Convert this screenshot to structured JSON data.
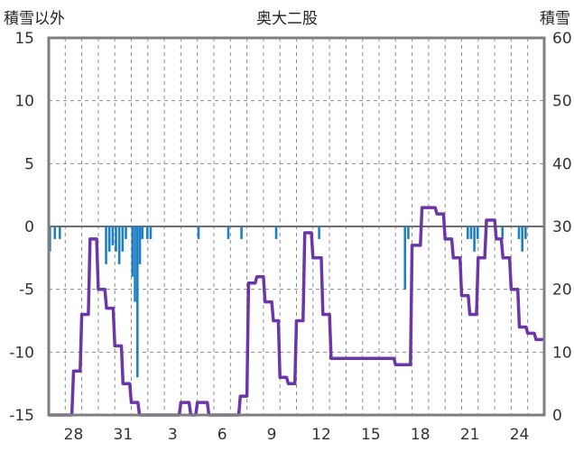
{
  "chart_data": {
    "type": "bar+line",
    "title": "奥大二股",
    "left_axis_label": "積雪以外",
    "right_axis_label": "積雪",
    "left_axis": {
      "range": [
        -15,
        15
      ],
      "ticks": [
        "15",
        "10",
        "5",
        "0",
        "-5",
        "-10",
        "-15"
      ]
    },
    "right_axis": {
      "range": [
        0,
        60
      ],
      "ticks": [
        "60",
        "50",
        "40",
        "30",
        "20",
        "10",
        "0"
      ]
    },
    "x_axis": {
      "range_days": [
        0,
        30
      ],
      "tick_labels": [
        "28",
        "31",
        "3",
        "6",
        "9",
        "12",
        "15",
        "18",
        "21",
        "24"
      ],
      "tick_day_positions": [
        1.5,
        4.5,
        7.5,
        10.5,
        13.5,
        16.5,
        19.5,
        22.5,
        25.5,
        28.5
      ],
      "grid_day_lines": [
        1,
        2,
        3,
        4,
        5,
        6,
        7,
        8,
        9,
        10,
        11,
        12,
        13,
        14,
        15,
        16,
        17,
        18,
        19,
        20,
        21,
        22,
        23,
        24,
        25,
        26,
        27,
        28,
        29,
        30
      ]
    },
    "grid": true,
    "series": [
      {
        "kind": "bar",
        "axis": "left",
        "color": "#1f7fc4",
        "points": [
          [
            0.0,
            -2.0
          ],
          [
            0.3,
            -1.0
          ],
          [
            0.6,
            -1.0
          ],
          [
            3.4,
            -3.0
          ],
          [
            3.6,
            -2.0
          ],
          [
            3.8,
            -1.5
          ],
          [
            4.0,
            -2.0
          ],
          [
            4.2,
            -3.0
          ],
          [
            4.4,
            -2.0
          ],
          [
            4.6,
            -1.0
          ],
          [
            5.0,
            -4.0
          ],
          [
            5.15,
            -6.0
          ],
          [
            5.3,
            -12.0
          ],
          [
            5.45,
            -3.0
          ],
          [
            5.6,
            -1.0
          ],
          [
            5.9,
            -1.0
          ],
          [
            6.1,
            -1.0
          ],
          [
            9.0,
            -1.0
          ],
          [
            10.8,
            -1.0
          ],
          [
            11.6,
            -1.0
          ],
          [
            13.7,
            -1.0
          ],
          [
            16.3,
            -1.0
          ],
          [
            21.5,
            -5.0
          ],
          [
            21.7,
            -1.0
          ],
          [
            25.3,
            -1.0
          ],
          [
            25.5,
            -1.0
          ],
          [
            25.7,
            -2.0
          ],
          [
            25.9,
            -1.0
          ],
          [
            27.4,
            -1.0
          ],
          [
            28.4,
            -1.0
          ],
          [
            28.6,
            -2.0
          ],
          [
            28.8,
            -1.0
          ]
        ]
      },
      {
        "kind": "line",
        "axis": "right",
        "color": "#6a36a8",
        "points": [
          [
            0,
            0
          ],
          [
            1.4,
            0
          ],
          [
            1.5,
            7
          ],
          [
            1.9,
            7
          ],
          [
            2.0,
            16
          ],
          [
            2.4,
            16
          ],
          [
            2.5,
            28
          ],
          [
            2.9,
            28
          ],
          [
            3.0,
            20
          ],
          [
            3.4,
            20
          ],
          [
            3.5,
            17
          ],
          [
            3.9,
            17
          ],
          [
            4.0,
            11
          ],
          [
            4.4,
            11
          ],
          [
            4.5,
            5
          ],
          [
            4.9,
            5
          ],
          [
            5.0,
            2
          ],
          [
            5.4,
            2
          ],
          [
            5.5,
            0
          ],
          [
            7.9,
            0
          ],
          [
            8.0,
            2
          ],
          [
            8.5,
            2
          ],
          [
            8.6,
            0
          ],
          [
            8.9,
            0
          ],
          [
            9.0,
            2
          ],
          [
            9.6,
            2
          ],
          [
            9.7,
            0
          ],
          [
            11.5,
            0
          ],
          [
            11.6,
            3
          ],
          [
            12.0,
            3
          ],
          [
            12.1,
            21
          ],
          [
            12.5,
            21
          ],
          [
            12.6,
            22
          ],
          [
            13.0,
            22
          ],
          [
            13.1,
            18
          ],
          [
            13.5,
            18
          ],
          [
            13.6,
            15
          ],
          [
            13.9,
            15
          ],
          [
            14.0,
            6
          ],
          [
            14.4,
            6
          ],
          [
            14.5,
            5
          ],
          [
            14.9,
            5
          ],
          [
            15.0,
            15
          ],
          [
            15.4,
            15
          ],
          [
            15.5,
            29
          ],
          [
            15.9,
            29
          ],
          [
            16.0,
            25
          ],
          [
            16.5,
            25
          ],
          [
            16.6,
            16
          ],
          [
            17.0,
            16
          ],
          [
            17.1,
            9
          ],
          [
            20.9,
            9
          ],
          [
            21.0,
            8
          ],
          [
            21.9,
            8
          ],
          [
            22.0,
            27
          ],
          [
            22.5,
            27
          ],
          [
            22.6,
            33
          ],
          [
            23.4,
            33
          ],
          [
            23.5,
            32
          ],
          [
            23.9,
            32
          ],
          [
            24.0,
            28
          ],
          [
            24.4,
            28
          ],
          [
            24.5,
            25
          ],
          [
            24.9,
            25
          ],
          [
            25.0,
            19
          ],
          [
            25.4,
            19
          ],
          [
            25.5,
            16
          ],
          [
            25.9,
            16
          ],
          [
            26.0,
            25
          ],
          [
            26.4,
            25
          ],
          [
            26.5,
            31
          ],
          [
            27.0,
            31
          ],
          [
            27.1,
            28
          ],
          [
            27.4,
            28
          ],
          [
            27.5,
            25
          ],
          [
            27.9,
            25
          ],
          [
            28.0,
            20
          ],
          [
            28.4,
            20
          ],
          [
            28.5,
            14
          ],
          [
            28.9,
            14
          ],
          [
            29.0,
            13
          ],
          [
            29.4,
            13
          ],
          [
            29.5,
            12
          ],
          [
            30.0,
            12
          ]
        ]
      }
    ]
  }
}
